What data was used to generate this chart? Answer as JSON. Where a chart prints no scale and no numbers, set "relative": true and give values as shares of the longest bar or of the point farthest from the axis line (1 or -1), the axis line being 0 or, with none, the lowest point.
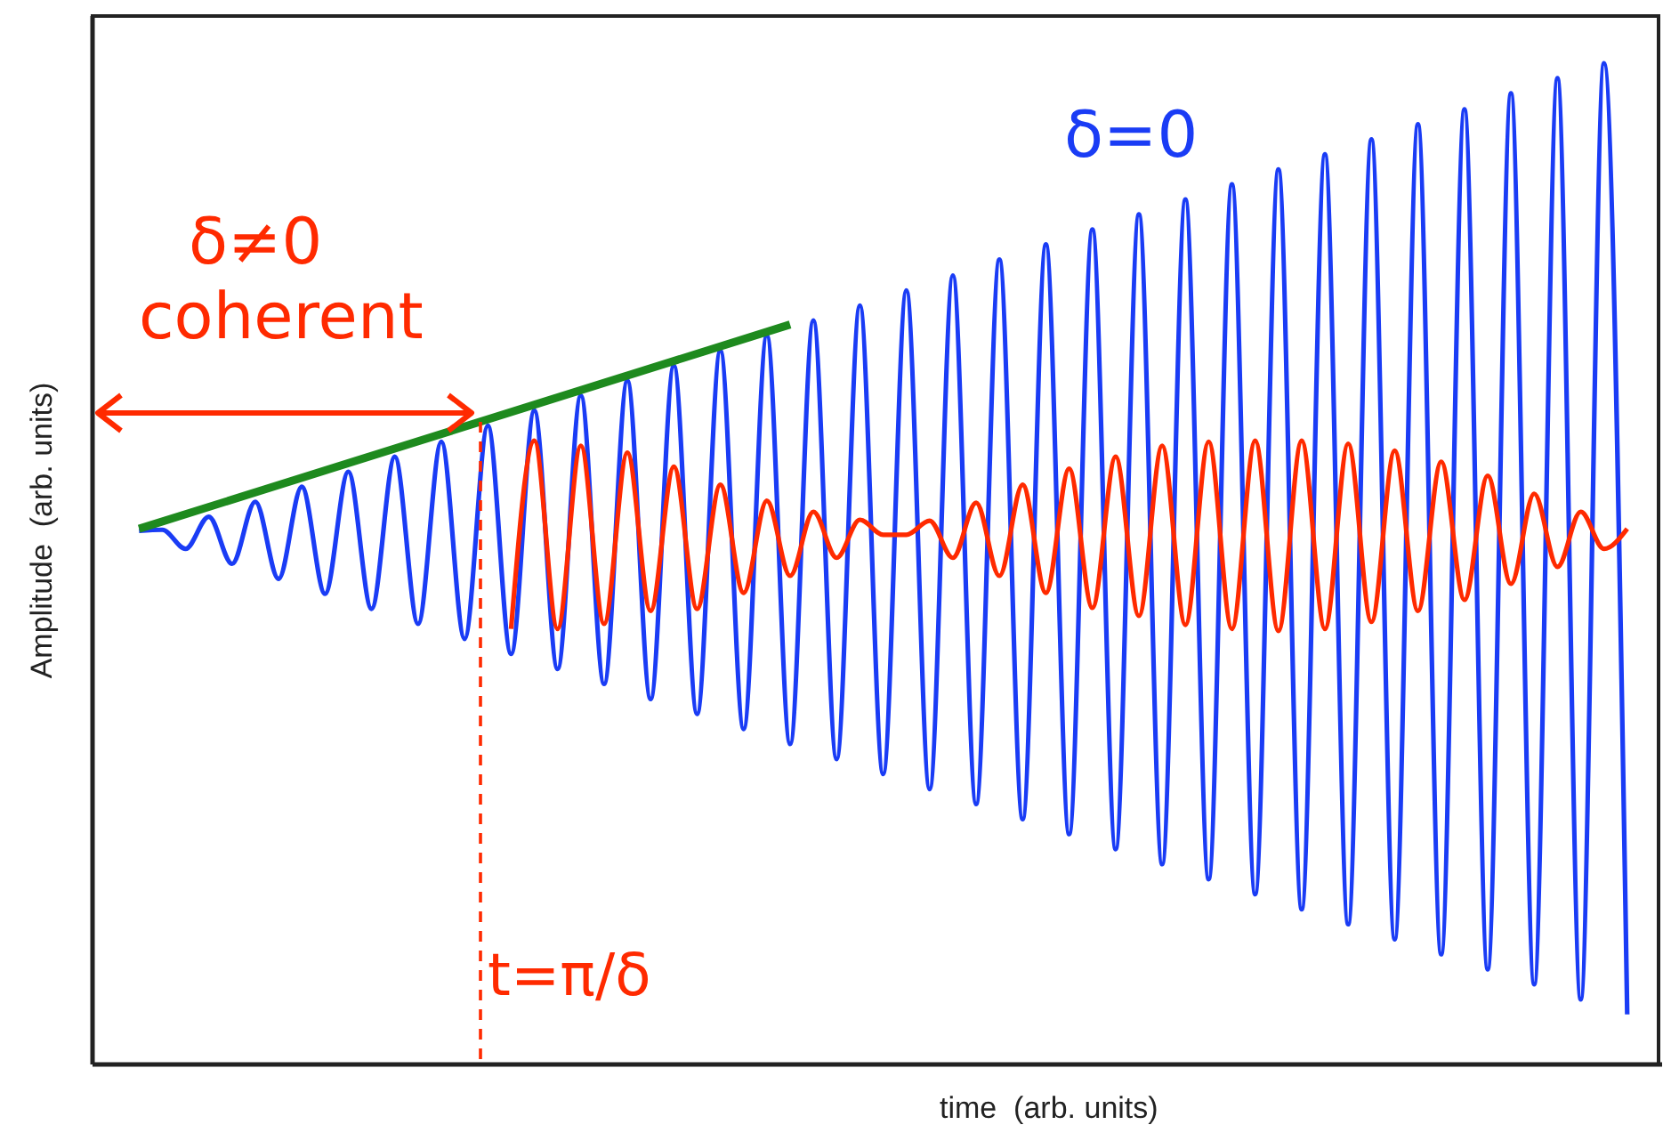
{
  "chart_data": {
    "type": "line",
    "relative": true,
    "xlabel": "time  (arb. units)",
    "ylabel": "Amplitude  (arb. units)",
    "categories": [
      null,
      null,
      null,
      null,
      null,
      null,
      null,
      null,
      null,
      null,
      null,
      null,
      null,
      null,
      null,
      null,
      null,
      null,
      null,
      null,
      null,
      null,
      null,
      null,
      null,
      null,
      null,
      null,
      null,
      null,
      null,
      null,
      null,
      null,
      null,
      null,
      null,
      null,
      null,
      null,
      null,
      null,
      null,
      null,
      null,
      null,
      null,
      null,
      null,
      null,
      null,
      null,
      null,
      null,
      null,
      null,
      null,
      null,
      null,
      null,
      null,
      null,
      null,
      null,
      null
    ],
    "series": [
      {
        "name": "δ=0",
        "color": "#1a3cf5",
        "values": [
          0.533,
          0.534,
          0.515,
          0.547,
          0.5,
          0.562,
          0.485,
          0.577,
          0.47,
          0.592,
          0.455,
          0.607,
          0.44,
          0.622,
          0.425,
          0.638,
          0.41,
          0.653,
          0.395,
          0.668,
          0.38,
          0.683,
          0.365,
          0.698,
          0.35,
          0.713,
          0.335,
          0.728,
          0.32,
          0.743,
          0.305,
          0.758,
          0.29,
          0.773,
          0.275,
          0.788,
          0.26,
          0.804,
          0.245,
          0.819,
          0.23,
          0.834,
          0.215,
          0.849,
          0.2,
          0.864,
          0.185,
          0.879,
          0.17,
          0.894,
          0.155,
          0.909,
          0.14,
          0.924,
          0.125,
          0.939,
          0.11,
          0.954,
          0.095,
          0.97,
          0.08,
          0.985,
          0.065,
          1.0,
          0.05
        ]
      },
      {
        "name": "δ≠0",
        "color": "#ff2a00",
        "values": [
          null,
          null,
          null,
          null,
          null,
          null,
          null,
          null,
          null,
          null,
          null,
          null,
          null,
          null,
          null,
          null,
          0.435,
          0.623,
          0.435,
          0.618,
          0.44,
          0.611,
          0.453,
          0.597,
          0.455,
          0.579,
          0.471,
          0.563,
          0.488,
          0.552,
          0.506,
          0.544,
          0.529,
          0.529,
          0.543,
          0.506,
          0.561,
          0.488,
          0.579,
          0.471,
          0.595,
          0.456,
          0.607,
          0.448,
          0.618,
          0.439,
          0.622,
          0.435,
          0.623,
          0.433,
          0.623,
          0.435,
          0.62,
          0.442,
          0.613,
          0.453,
          0.602,
          0.464,
          0.588,
          0.48,
          0.57,
          0.497,
          0.552,
          0.515,
          0.535
        ]
      },
      {
        "color": "#1e8a1e",
        "values": [
          0.535,
          null,
          null,
          null,
          null,
          null,
          null,
          null,
          null,
          null,
          null,
          null,
          null,
          null,
          null,
          null,
          null,
          null,
          null,
          null,
          null,
          null,
          null,
          null,
          null,
          null,
          null,
          null,
          0.739,
          null,
          null,
          null,
          null,
          null,
          null,
          null,
          null,
          null,
          null,
          null,
          null,
          null,
          null,
          null,
          null,
          null,
          null,
          null,
          null,
          null,
          null,
          null,
          null,
          null,
          null,
          null,
          null,
          null,
          null,
          null,
          null,
          null,
          null,
          null,
          null
        ]
      }
    ],
    "annotations": [
      "coherent",
      "t=π/δ"
    ],
    "legend": false,
    "grid": false,
    "marker": "none"
  }
}
